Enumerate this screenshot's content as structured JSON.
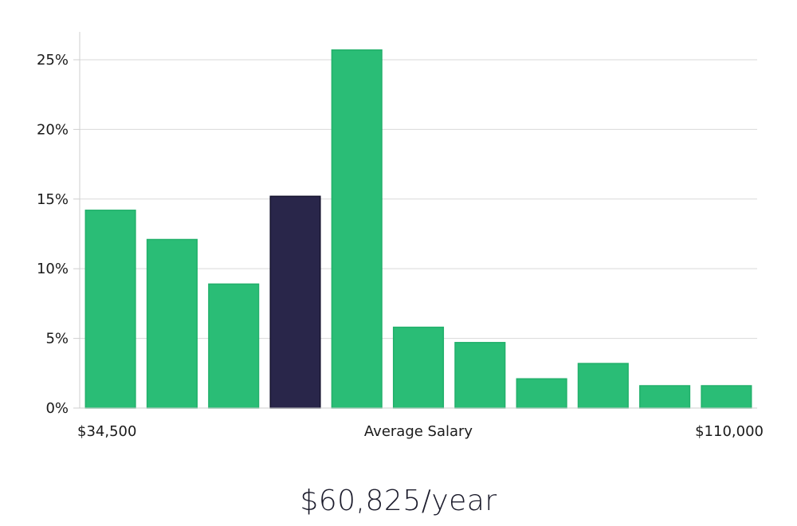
{
  "chart_data": {
    "type": "bar",
    "title": "",
    "xlabel": "Average Salary",
    "ylabel": "",
    "x_range_labels": {
      "min": "$34,500",
      "max": "$110,000"
    },
    "ylim": [
      0,
      27
    ],
    "yticks": [
      0,
      5,
      10,
      15,
      20,
      25
    ],
    "ytick_labels": [
      "0%",
      "5%",
      "10%",
      "15%",
      "20%",
      "25%"
    ],
    "values": [
      14.2,
      12.1,
      8.9,
      15.2,
      25.7,
      5.8,
      4.7,
      2.1,
      3.2,
      1.6,
      1.6
    ],
    "highlight_index": 3,
    "grid": true,
    "colors": {
      "bar": "#2abd76",
      "bar_border": "#22b06b",
      "highlight": "#29264a",
      "highlight_border": "#15132e",
      "grid": "#d9d9d9",
      "axis": "#cfcfcf"
    }
  },
  "summary": {
    "salary_text": "$60,825/year"
  }
}
